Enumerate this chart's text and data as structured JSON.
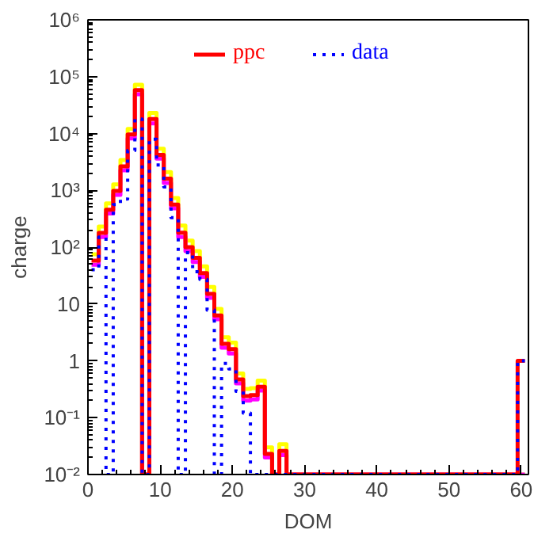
{
  "chart_data": {
    "type": "histogram",
    "xlabel": "DOM",
    "ylabel": "charge",
    "log": "y",
    "grid": false,
    "legend": "top",
    "line_style": "solid",
    "xlim": [
      0,
      61
    ],
    "xticks": [
      0,
      10,
      20,
      30,
      40,
      50,
      60
    ],
    "ylim": [
      0.01,
      1000000
    ],
    "yticks": [
      {
        "value": 0.01,
        "label": "10⁻²"
      },
      {
        "value": 0.1,
        "label": "10⁻¹"
      },
      1,
      10,
      {
        "value": 100,
        "label": "10²"
      },
      {
        "value": 1000,
        "label": "10³"
      },
      {
        "value": 10000,
        "label": "10⁴"
      },
      {
        "value": 100000,
        "label": "10⁵"
      },
      {
        "value": 1000000,
        "label": "10⁶"
      }
    ],
    "bins": [
      0.5,
      1.5,
      2.5,
      3.5,
      4.5,
      5.5,
      6.5,
      7.5,
      8.5,
      9.5,
      10.5,
      11.5,
      12.5,
      13.5,
      14.5,
      15.5,
      16.5,
      17.5,
      18.5,
      19.5,
      20.5,
      21.5,
      22.5,
      23.5,
      24.5,
      25.5,
      26.5,
      27.5,
      28.5,
      29.5,
      30.5,
      31.5,
      32.5,
      33.5,
      34.5,
      35.5,
      36.5,
      37.5,
      38.5,
      39.5,
      40.5,
      41.5,
      42.5,
      43.5,
      44.5,
      45.5,
      46.5,
      47.5,
      48.5,
      49.5,
      50.5,
      51.5,
      52.5,
      53.5,
      54.5,
      55.5,
      56.5,
      57.5,
      58.5,
      59.5,
      60.5
    ],
    "series": [
      {
        "color": "#ffff00",
        "values": [
          75,
          230,
          590,
          1270,
          3400,
          12000,
          72000,
          null,
          23000,
          5400,
          2100,
          730,
          240,
          130,
          85,
          46,
          20,
          8.2,
          2.6,
          2.1,
          0.6,
          0.32,
          0.33,
          0.45,
          0.03,
          null,
          0.034,
          null,
          null,
          null,
          null,
          null,
          null,
          null,
          null,
          null,
          null,
          null,
          null,
          null,
          null,
          null,
          null,
          null,
          null,
          null,
          null,
          null,
          null,
          null,
          null,
          null,
          null,
          null,
          null,
          null,
          null,
          null,
          null,
          null
        ]
      },
      {
        "color": "#ff00ff",
        "values": [
          49,
          150,
          390,
          830,
          2250,
          8200,
          49000,
          null,
          15000,
          3600,
          1350,
          480,
          150,
          85,
          55,
          30,
          12.8,
          5.4,
          1.7,
          1.35,
          0.4,
          0.2,
          0.21,
          0.3,
          0.02,
          null,
          0.022,
          null,
          null,
          null,
          null,
          null,
          null,
          null,
          null,
          null,
          null,
          null,
          null,
          null,
          null,
          null,
          null,
          null,
          null,
          null,
          null,
          null,
          null,
          null,
          null,
          null,
          null,
          null,
          null,
          null,
          null,
          null,
          null,
          null
        ]
      },
      {
        "name": "ppc",
        "color": "#ff0000",
        "values": [
          58,
          178,
          455,
          980,
          2650,
          9600,
          58000,
          null,
          18000,
          4200,
          1600,
          560,
          180,
          100,
          65,
          35,
          15,
          6.3,
          2,
          1.6,
          0.47,
          0.24,
          0.25,
          0.35,
          0.023,
          null,
          0.026,
          null,
          null,
          null,
          null,
          null,
          null,
          null,
          null,
          null,
          null,
          null,
          null,
          null,
          null,
          null,
          null,
          null,
          null,
          null,
          null,
          null,
          null,
          null,
          null,
          null,
          null,
          null,
          null,
          null,
          null,
          null,
          null,
          1
        ]
      },
      {
        "name": "data",
        "color": "#0000ff",
        "line_style": "dotted",
        "values": [
          40,
          150,
          null,
          560,
          700,
          5000,
          18000,
          null,
          7900,
          2800,
          1150,
          330,
          null,
          80,
          37,
          27,
          7.8,
          null,
          0.9,
          0.72,
          0.29,
          0.12,
          null,
          null,
          null,
          null,
          null,
          null,
          null,
          null,
          null,
          null,
          null,
          null,
          null,
          null,
          null,
          null,
          null,
          null,
          null,
          null,
          null,
          null,
          null,
          null,
          null,
          null,
          null,
          null,
          null,
          null,
          null,
          null,
          null,
          null,
          null,
          null,
          null,
          1
        ]
      }
    ]
  }
}
